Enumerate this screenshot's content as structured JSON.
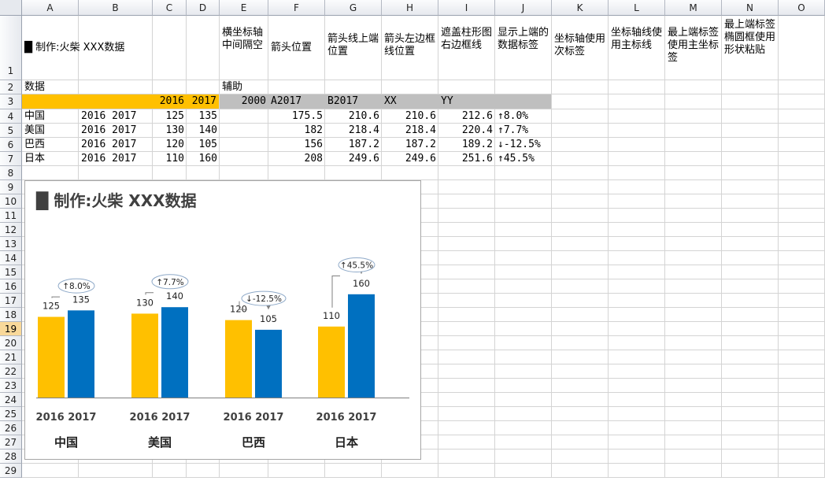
{
  "sheet": {
    "columns": [
      "A",
      "B",
      "C",
      "D",
      "E",
      "F",
      "G",
      "H",
      "I",
      "J",
      "K",
      "L",
      "M",
      "N",
      "O"
    ],
    "rows": [
      "1",
      "2",
      "3",
      "4",
      "5",
      "6",
      "7",
      "8",
      "9",
      "10",
      "11",
      "12",
      "13",
      "14",
      "15",
      "16",
      "17",
      "18",
      "19",
      "20",
      "21",
      "22",
      "23",
      "24",
      "25",
      "26",
      "27",
      "28",
      "29"
    ],
    "selected_row": "19",
    "r1": {
      "a1": "█ 制作:火柴      XXX数据",
      "e1": "横坐标轴中间隔空",
      "f1": "箭头位置",
      "g1": "箭头线上端位置",
      "h1": "箭头左边框线位置",
      "i1": "遮盖柱形图右边框线",
      "j1": "显示上端的数据标签",
      "k1": "坐标轴使用次标签",
      "l1": "坐标轴线使用主标线",
      "m1": "最上端标签使用主坐标签",
      "n1": "最上端标签椭圆框使用形状粘贴"
    },
    "r2": {
      "a2": "数据",
      "e2": "辅助"
    },
    "r3": {
      "c3": "2016",
      "d3": "2017",
      "e3": "2000",
      "f3": "A2017",
      "g3": "B2017",
      "h3": "XX",
      "i3": "YY"
    },
    "data_rows": [
      {
        "country": "中国",
        "years": "2016  2017",
        "v2016": "125",
        "v2017": "135",
        "f": "175.5",
        "g": "210.6",
        "h": "210.6",
        "i": "212.6",
        "j": "↑8.0%"
      },
      {
        "country": "美国",
        "years": "2016  2017",
        "v2016": "130",
        "v2017": "140",
        "f": "182",
        "g": "218.4",
        "h": "218.4",
        "i": "220.4",
        "j": "↑7.7%"
      },
      {
        "country": "巴西",
        "years": "2016  2017",
        "v2016": "120",
        "v2017": "105",
        "f": "156",
        "g": "187.2",
        "h": "187.2",
        "i": "189.2",
        "j": "↓-12.5%"
      },
      {
        "country": "日本",
        "years": "2016  2017",
        "v2016": "110",
        "v2017": "160",
        "f": "208",
        "g": "249.6",
        "h": "249.6",
        "i": "251.6",
        "j": "↑45.5%"
      }
    ],
    "colors": {
      "highlight_orange": "#ffc000",
      "gray_fill": "#bfbfbf"
    }
  },
  "chart_data": {
    "type": "bar",
    "title": "█ 制作:火柴   XXX数据",
    "categories": [
      "中国",
      "美国",
      "巴西",
      "日本"
    ],
    "year_labels": [
      "2016 2017",
      "2016 2017",
      "2016 2017",
      "2016 2017"
    ],
    "series": [
      {
        "values": [
          125,
          130,
          120,
          110
        ],
        "color": "#ffc000"
      },
      {
        "values": [
          135,
          140,
          105,
          160
        ],
        "color": "#0070c0"
      }
    ],
    "change_labels": [
      "↑8.0%",
      "↑7.7%",
      "↓-12.5%",
      "↑45.5%"
    ],
    "value_labels_2016": [
      "125",
      "130",
      "120",
      "110"
    ],
    "value_labels_2017": [
      "135",
      "140",
      "105",
      "160"
    ],
    "ylim": [
      0,
      260
    ],
    "grid": false,
    "legend": "none"
  }
}
